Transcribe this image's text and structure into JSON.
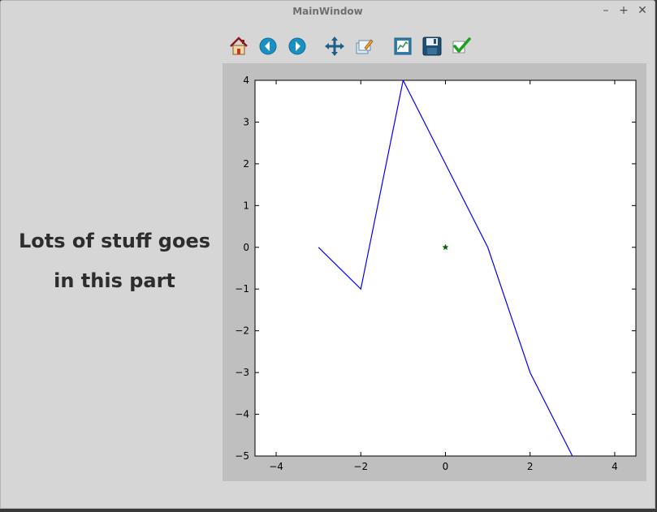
{
  "window": {
    "title": "MainWindow",
    "minimize_label": "–",
    "maximize_label": "+",
    "close_label": "✕"
  },
  "left_panel": {
    "line1": "Lots of stuff goes",
    "line2": "in this part"
  },
  "toolbar": {
    "icons": [
      "home-icon",
      "back-icon",
      "forward-icon",
      "pan-icon",
      "zoom-icon",
      "subplots-icon",
      "save-icon",
      "check-icon"
    ]
  },
  "colors": {
    "line": "#0000ff",
    "marker": "#006400",
    "plot_background": "#bfbfbf",
    "axes_background": "#ffffff"
  },
  "chart_data": {
    "type": "line",
    "xlim": [
      -4.5,
      4.5
    ],
    "ylim": [
      -5,
      4
    ],
    "xticks": [
      -4,
      -2,
      0,
      2,
      4
    ],
    "yticks": [
      4,
      3,
      2,
      1,
      0,
      -1,
      -2,
      -3,
      -4,
      -5
    ],
    "xtick_labels": [
      "−4",
      "−2",
      "0",
      "2",
      "4"
    ],
    "ytick_labels": [
      "4",
      "3",
      "2",
      "1",
      "0",
      "−1",
      "−2",
      "−3",
      "−4",
      "−5"
    ],
    "series": [
      {
        "x": [
          -3,
          -2,
          -1,
          0,
          1,
          2,
          3
        ],
        "y": [
          0,
          -1,
          4,
          2,
          0,
          -3,
          -5
        ]
      }
    ],
    "markers": [
      {
        "x": 0,
        "y": 0,
        "symbol": "star"
      }
    ],
    "grid": false
  }
}
